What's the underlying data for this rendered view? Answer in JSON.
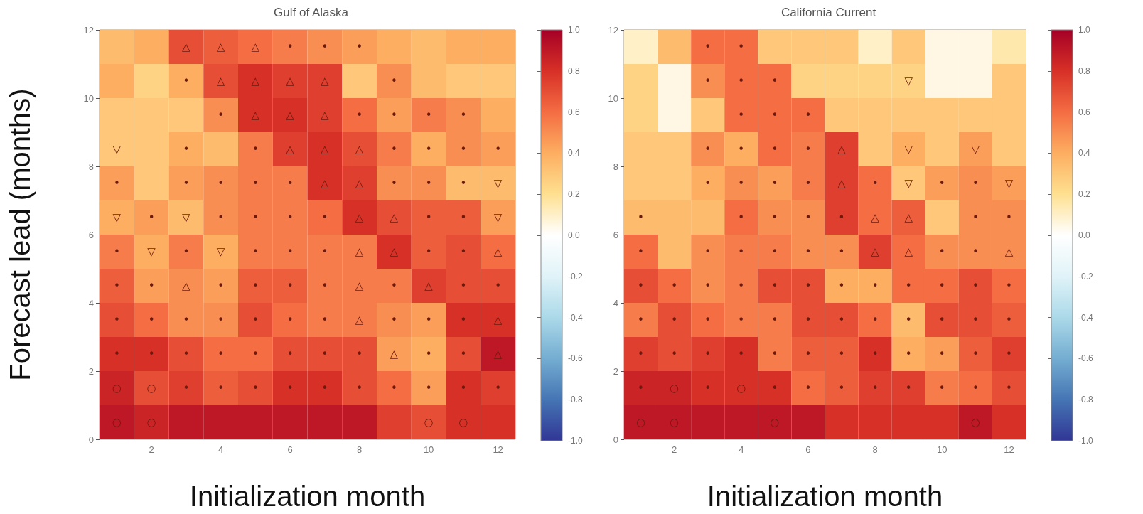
{
  "chart_data": [
    {
      "type": "heatmap",
      "title": "Gulf of Alaska",
      "xlabel": "Initialization month",
      "ylabel": "Forecast lead (months)",
      "categories": [
        null,
        "2",
        null,
        "4",
        null,
        "6",
        null,
        "8",
        null,
        "10",
        null,
        "12"
      ],
      "ylim": [
        0,
        12
      ],
      "yticks": [
        0,
        2,
        4,
        6,
        8,
        10,
        12
      ],
      "clim": [
        -1,
        1
      ],
      "cticks": [
        {
          "value": -1,
          "label": "-1.0"
        },
        {
          "value": -0.8,
          "label": "-0.8"
        },
        {
          "value": -0.6,
          "label": "-0.6"
        },
        {
          "value": -0.4,
          "label": "-0.4"
        },
        {
          "value": -0.2,
          "label": "-0.2"
        },
        {
          "value": 0,
          "label": "0.0"
        },
        {
          "value": 0.2,
          "label": "0.2"
        },
        {
          "value": 0.4,
          "label": "0.4"
        },
        {
          "value": 0.6,
          "label": "0.6"
        },
        {
          "value": 0.8,
          "label": "0.8"
        },
        {
          "value": 1,
          "label": "1.0"
        }
      ],
      "cells": [
        [
          0.35,
          0.4,
          0.7,
          0.65,
          0.6,
          0.55,
          0.5,
          0.45,
          0.4,
          0.35,
          0.4,
          0.4
        ],
        [
          0.4,
          0.25,
          0.4,
          0.7,
          0.8,
          0.75,
          0.75,
          0.3,
          0.5,
          0.35,
          0.3,
          0.3
        ],
        [
          0.3,
          0.3,
          0.3,
          0.5,
          0.8,
          0.8,
          0.75,
          0.6,
          0.45,
          0.55,
          0.5,
          0.4
        ],
        [
          0.3,
          0.3,
          0.4,
          0.35,
          0.55,
          0.75,
          0.8,
          0.7,
          0.55,
          0.4,
          0.5,
          0.45
        ],
        [
          0.45,
          0.3,
          0.45,
          0.5,
          0.55,
          0.55,
          0.8,
          0.75,
          0.5,
          0.5,
          0.35,
          0.35
        ],
        [
          0.4,
          0.45,
          0.35,
          0.5,
          0.55,
          0.55,
          0.6,
          0.8,
          0.7,
          0.65,
          0.65,
          0.45
        ],
        [
          0.55,
          0.4,
          0.55,
          0.4,
          0.55,
          0.55,
          0.55,
          0.55,
          0.8,
          0.65,
          0.7,
          0.6
        ],
        [
          0.65,
          0.45,
          0.5,
          0.45,
          0.65,
          0.65,
          0.55,
          0.55,
          0.55,
          0.75,
          0.7,
          0.7
        ],
        [
          0.7,
          0.6,
          0.5,
          0.5,
          0.7,
          0.6,
          0.55,
          0.55,
          0.5,
          0.45,
          0.8,
          0.8
        ],
        [
          0.8,
          0.8,
          0.7,
          0.6,
          0.6,
          0.7,
          0.7,
          0.7,
          0.45,
          0.4,
          0.7,
          0.9
        ],
        [
          0.85,
          0.7,
          0.75,
          0.65,
          0.7,
          0.8,
          0.8,
          0.7,
          0.6,
          0.45,
          0.8,
          0.75
        ],
        [
          0.9,
          0.85,
          0.9,
          0.9,
          0.9,
          0.9,
          0.9,
          0.9,
          0.75,
          0.7,
          0.8,
          0.8
        ]
      ],
      "cell_labels": [
        [
          null,
          null,
          "△",
          "△",
          "△",
          "•",
          "•",
          "•",
          null,
          null,
          null,
          null
        ],
        [
          null,
          null,
          "•",
          "△",
          "△",
          "△",
          "△",
          null,
          "•",
          null,
          null,
          null
        ],
        [
          null,
          null,
          null,
          "•",
          "△",
          "△",
          "△",
          "•",
          "•",
          "•",
          "•",
          null
        ],
        [
          "▽",
          null,
          "•",
          null,
          "•",
          "△",
          "△",
          "△",
          "•",
          "•",
          "•",
          "•"
        ],
        [
          "•",
          null,
          "•",
          "•",
          "•",
          "•",
          "△",
          "△",
          "•",
          "•",
          "•",
          "▽"
        ],
        [
          "▽",
          "•",
          "▽",
          "•",
          "•",
          "•",
          "•",
          "△",
          "△",
          "•",
          "•",
          "▽"
        ],
        [
          "•",
          "▽",
          "•",
          "▽",
          "•",
          "•",
          "•",
          "△",
          "△",
          "•",
          "•",
          "△"
        ],
        [
          "•",
          "•",
          "△",
          "•",
          "•",
          "•",
          "•",
          "△",
          "•",
          "△",
          "•",
          "•"
        ],
        [
          "•",
          "•",
          "•",
          "•",
          "•",
          "•",
          "•",
          "△",
          "•",
          "•",
          "•",
          "△"
        ],
        [
          "•",
          "•",
          "•",
          "•",
          "•",
          "•",
          "•",
          "•",
          "△",
          "•",
          "•",
          "△"
        ],
        [
          "○",
          "○",
          "•",
          "•",
          "•",
          "•",
          "•",
          "•",
          "•",
          "•",
          "•",
          "•"
        ],
        [
          "○",
          "○",
          null,
          null,
          null,
          null,
          null,
          null,
          null,
          "○",
          "○",
          null
        ]
      ]
    },
    {
      "type": "heatmap",
      "title": "California Current",
      "xlabel": "Initialization month",
      "categories": [
        null,
        "2",
        null,
        "4",
        null,
        "6",
        null,
        "8",
        null,
        "10",
        null,
        "12"
      ],
      "ylim": [
        0,
        12
      ],
      "yticks": [
        0,
        2,
        4,
        6,
        8,
        10,
        12
      ],
      "clim": [
        -1,
        1
      ],
      "cticks": [
        {
          "value": -1,
          "label": "-1.0"
        },
        {
          "value": -0.8,
          "label": "-0.8"
        },
        {
          "value": -0.6,
          "label": "-0.6"
        },
        {
          "value": -0.4,
          "label": "-0.4"
        },
        {
          "value": -0.2,
          "label": "-0.2"
        },
        {
          "value": 0,
          "label": "0.0"
        },
        {
          "value": 0.2,
          "label": "0.2"
        },
        {
          "value": 0.4,
          "label": "0.4"
        },
        {
          "value": 0.6,
          "label": "0.6"
        },
        {
          "value": 0.8,
          "label": "0.8"
        },
        {
          "value": 1,
          "label": "1.0"
        }
      ],
      "cells": [
        [
          0.1,
          0.35,
          0.6,
          0.6,
          0.3,
          0.3,
          0.3,
          0.1,
          0.3,
          0.05,
          0.05,
          0.15
        ],
        [
          0.25,
          0.05,
          0.5,
          0.6,
          0.6,
          0.25,
          0.25,
          0.25,
          0.25,
          0.05,
          0.05,
          0.3
        ],
        [
          0.25,
          0.05,
          0.3,
          0.6,
          0.6,
          0.6,
          0.3,
          0.3,
          0.3,
          0.3,
          0.3,
          0.3
        ],
        [
          0.3,
          0.3,
          0.5,
          0.4,
          0.6,
          0.55,
          0.75,
          0.3,
          0.4,
          0.3,
          0.45,
          0.3
        ],
        [
          0.3,
          0.3,
          0.4,
          0.5,
          0.45,
          0.55,
          0.75,
          0.6,
          0.3,
          0.45,
          0.5,
          0.45
        ],
        [
          0.35,
          0.35,
          0.35,
          0.6,
          0.5,
          0.5,
          0.75,
          0.6,
          0.65,
          0.3,
          0.5,
          0.5
        ],
        [
          0.6,
          0.35,
          0.5,
          0.55,
          0.55,
          0.5,
          0.5,
          0.75,
          0.6,
          0.5,
          0.5,
          0.5
        ],
        [
          0.7,
          0.6,
          0.5,
          0.55,
          0.7,
          0.7,
          0.4,
          0.4,
          0.6,
          0.6,
          0.7,
          0.6
        ],
        [
          0.55,
          0.7,
          0.6,
          0.55,
          0.55,
          0.7,
          0.7,
          0.6,
          0.35,
          0.7,
          0.7,
          0.65
        ],
        [
          0.75,
          0.7,
          0.75,
          0.8,
          0.55,
          0.65,
          0.65,
          0.8,
          0.4,
          0.45,
          0.65,
          0.75
        ],
        [
          0.85,
          0.85,
          0.8,
          0.8,
          0.8,
          0.6,
          0.65,
          0.75,
          0.75,
          0.55,
          0.6,
          0.7
        ],
        [
          0.9,
          0.9,
          0.9,
          0.9,
          0.9,
          0.9,
          0.8,
          0.8,
          0.8,
          0.8,
          0.9,
          0.8
        ]
      ],
      "cell_labels": [
        [
          null,
          null,
          "•",
          "•",
          null,
          null,
          null,
          null,
          null,
          null,
          null,
          null
        ],
        [
          null,
          null,
          "•",
          "•",
          "•",
          null,
          null,
          null,
          "▽",
          null,
          null,
          null
        ],
        [
          null,
          null,
          null,
          "•",
          "•",
          "•",
          null,
          null,
          null,
          null,
          null,
          null
        ],
        [
          null,
          null,
          "•",
          "•",
          "•",
          "•",
          "△",
          null,
          "▽",
          null,
          "▽",
          null
        ],
        [
          null,
          null,
          "•",
          "•",
          "•",
          "•",
          "△",
          "•",
          "▽",
          "•",
          "•",
          "▽"
        ],
        [
          "•",
          null,
          null,
          "•",
          "•",
          "•",
          "•",
          "△",
          "△",
          null,
          "•",
          "•"
        ],
        [
          "•",
          null,
          "•",
          "•",
          "•",
          "•",
          "•",
          "△",
          "△",
          "•",
          "•",
          "△"
        ],
        [
          "•",
          "•",
          "•",
          "•",
          "•",
          "•",
          "•",
          "•",
          "•",
          "•",
          "•",
          "•"
        ],
        [
          "•",
          "•",
          "•",
          "•",
          "•",
          "•",
          "•",
          "•",
          "•",
          "•",
          "•",
          "•"
        ],
        [
          "•",
          "•",
          "•",
          "•",
          "•",
          "•",
          "•",
          "•",
          "•",
          "•",
          "•",
          "•"
        ],
        [
          "•",
          "○",
          "•",
          "○",
          "•",
          "•",
          "•",
          "•",
          "•",
          "•",
          "•",
          "•"
        ],
        [
          "○",
          "○",
          null,
          null,
          "○",
          null,
          null,
          null,
          null,
          null,
          "○",
          null
        ]
      ]
    }
  ]
}
